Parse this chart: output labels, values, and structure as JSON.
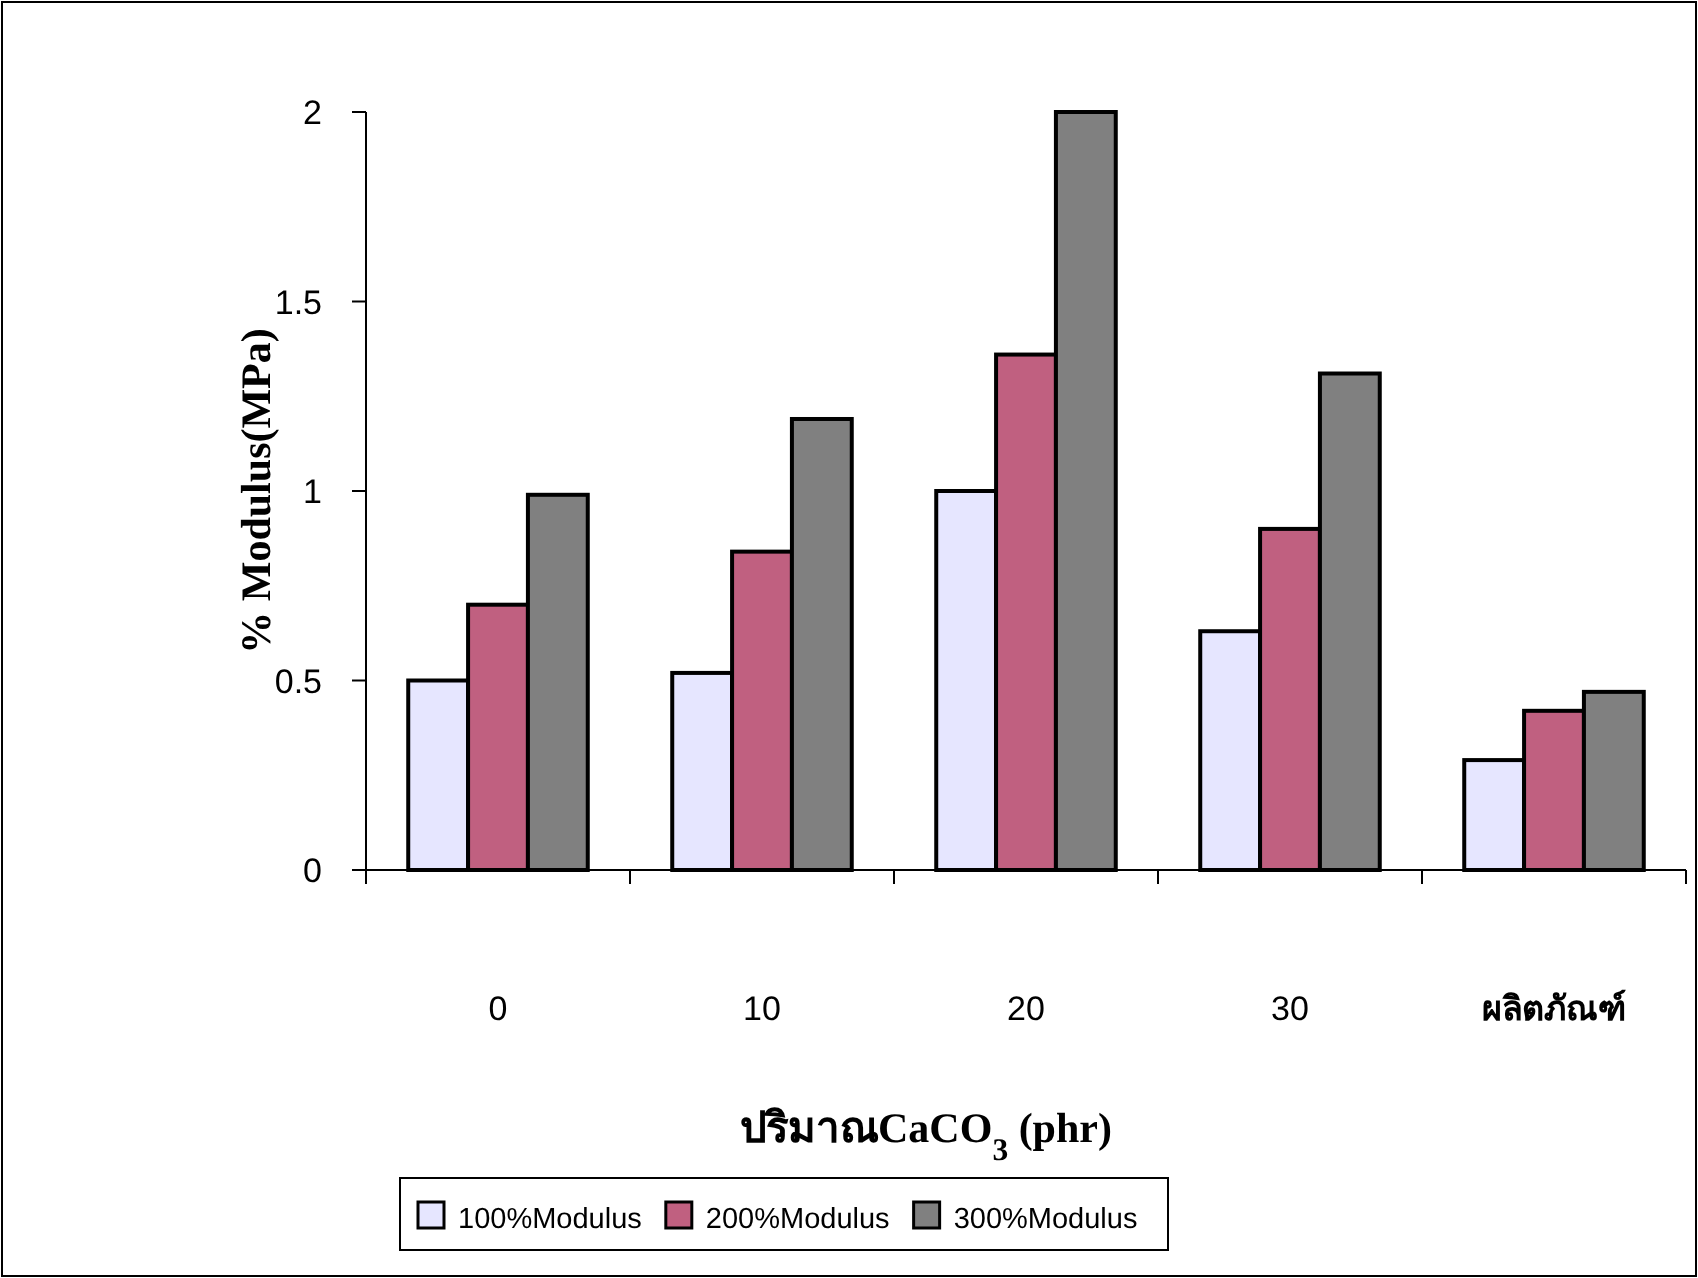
{
  "chart_data": {
    "type": "bar",
    "xlabel": "ปริมาณCaCO$_{3}$ (phr)",
    "ylabel": "% Modulus(MPa)",
    "categories": [
      "0",
      "10",
      "20",
      "30",
      "ผลิตภัณฑ์"
    ],
    "series": [
      {
        "name": "100%Modulus",
        "color": "#e6e6ff",
        "values": [
          0.5,
          0.52,
          1.0,
          0.63,
          0.29
        ]
      },
      {
        "name": "200%Modulus",
        "color": "#c06080",
        "values": [
          0.7,
          0.84,
          1.36,
          0.9,
          0.42
        ]
      },
      {
        "name": "300%Modulus",
        "color": "#808080",
        "values": [
          0.99,
          1.19,
          2.0,
          1.31,
          0.47
        ]
      }
    ],
    "ylim": [
      0,
      2
    ],
    "yticks": [
      0,
      0.5,
      1,
      1.5,
      2
    ],
    "grid": false,
    "legend": "bottom"
  }
}
